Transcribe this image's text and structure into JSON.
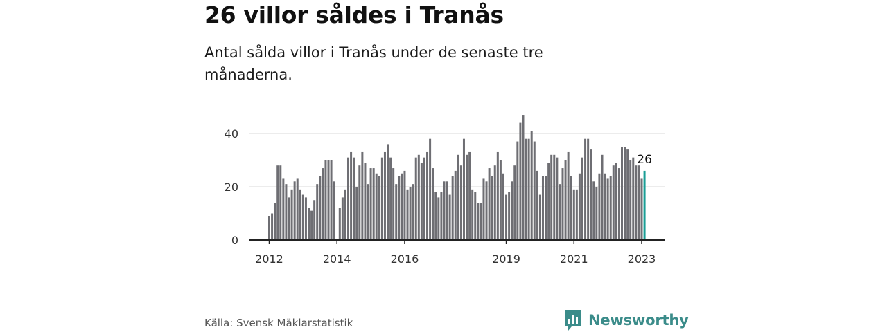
{
  "header": {
    "title": "26 villor såldes i Tranås",
    "subtitle": "Antal sålda villor i Tranås under de senaste tre månaderna."
  },
  "footer": {
    "source": "Källa: Svensk Mäklarstatistik",
    "brand": "Newsworthy"
  },
  "colors": {
    "bar": "#6e6e73",
    "highlight": "#1a9e95",
    "brand": "#3b8c8a"
  },
  "chart_data": {
    "type": "bar",
    "title": "26 villor såldes i Tranås",
    "xlabel": "",
    "ylabel": "",
    "ylim": [
      0,
      50
    ],
    "y_ticks": [
      0,
      20,
      40
    ],
    "x_start": "2012-01",
    "x_tick_labels": [
      {
        "label": "2012",
        "index": 0
      },
      {
        "label": "2014",
        "index": 24
      },
      {
        "label": "2016",
        "index": 48
      },
      {
        "label": "2019",
        "index": 84
      },
      {
        "label": "2021",
        "index": 108
      },
      {
        "label": "2023",
        "index": 132
      }
    ],
    "values": [
      9,
      10,
      14,
      28,
      28,
      23,
      21,
      16,
      19,
      22,
      23,
      19,
      17,
      16,
      12,
      11,
      15,
      21,
      24,
      27,
      30,
      30,
      30,
      22,
      0,
      12,
      16,
      19,
      31,
      33,
      31,
      20,
      28,
      33,
      29,
      21,
      27,
      27,
      25,
      24,
      31,
      33,
      36,
      31,
      27,
      21,
      24,
      25,
      26,
      19,
      20,
      21,
      31,
      32,
      29,
      31,
      33,
      38,
      27,
      18,
      16,
      18,
      22,
      22,
      17,
      24,
      26,
      32,
      28,
      38,
      32,
      33,
      19,
      18,
      14,
      14,
      23,
      22,
      27,
      24,
      28,
      33,
      30,
      25,
      17,
      18,
      22,
      28,
      37,
      44,
      47,
      38,
      38,
      41,
      37,
      26,
      17,
      24,
      24,
      29,
      32,
      32,
      31,
      21,
      27,
      30,
      33,
      24,
      19,
      19,
      25,
      31,
      38,
      38,
      34,
      22,
      20,
      25,
      32,
      25,
      23,
      24,
      28,
      29,
      27,
      35,
      35,
      34,
      30,
      31,
      28,
      28,
      23,
      26
    ],
    "last_value_label": "26",
    "highlight_last": true
  }
}
